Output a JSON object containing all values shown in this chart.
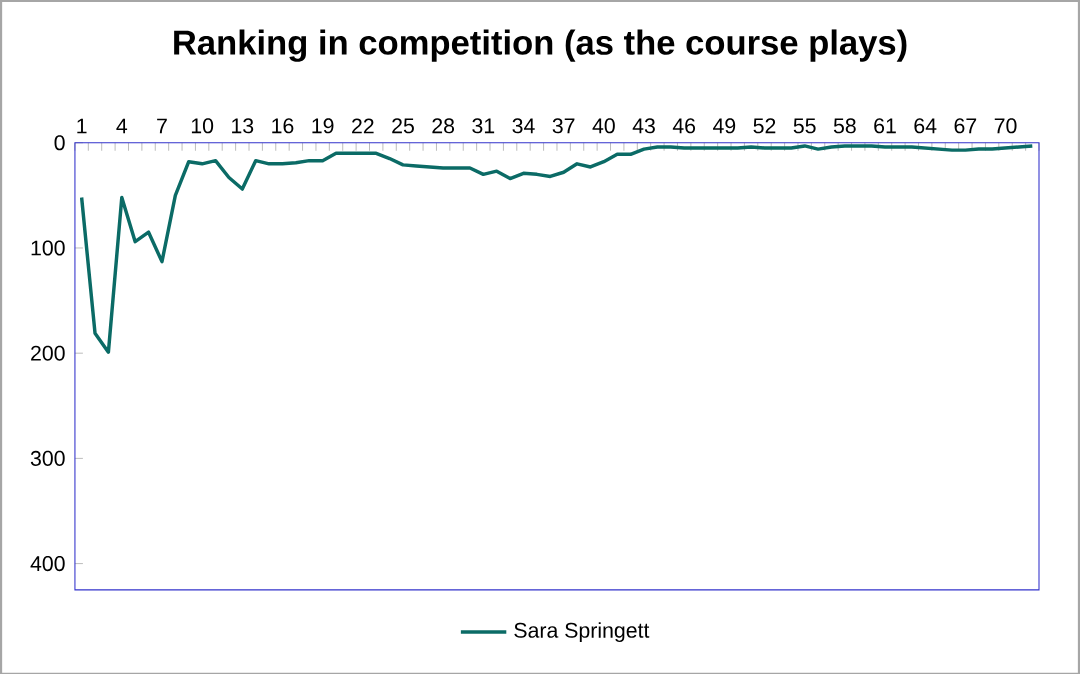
{
  "chart_data": {
    "type": "line",
    "title": "Ranking in competition (as the course plays)",
    "categories": [
      "1",
      null,
      null,
      "4",
      null,
      null,
      "7",
      null,
      null,
      "10",
      null,
      null,
      "13",
      null,
      null,
      "16",
      null,
      null,
      "19",
      null,
      null,
      "22",
      null,
      null,
      "25",
      null,
      null,
      "28",
      null,
      null,
      "31",
      null,
      null,
      "34",
      null,
      null,
      "37",
      null,
      null,
      "40",
      null,
      null,
      "43",
      null,
      null,
      "46",
      null,
      null,
      "49",
      null,
      null,
      "52",
      null,
      null,
      "55",
      null,
      null,
      "58",
      null,
      null,
      "61",
      null,
      null,
      "64",
      null,
      null,
      "67",
      null,
      null,
      "70",
      null,
      null
    ],
    "series": [
      {
        "name": "Sara Springett",
        "color": "#0b6b66",
        "values": [
          52,
          181,
          199,
          52,
          94,
          85,
          113,
          50,
          18,
          20,
          17,
          33,
          44,
          17,
          20,
          20,
          19,
          17,
          17,
          10,
          10,
          10,
          10,
          15,
          21,
          22,
          23,
          24,
          24,
          24,
          30,
          27,
          34,
          29,
          30,
          32,
          28,
          20,
          23,
          18,
          11,
          11,
          6,
          4,
          4,
          5,
          5,
          5,
          5,
          5,
          4,
          5,
          5,
          5,
          3,
          6,
          4,
          3,
          3,
          3,
          4,
          4,
          4,
          5,
          6,
          7,
          7,
          6,
          6,
          5,
          4,
          3
        ]
      }
    ],
    "ylim": [
      425,
      0
    ],
    "yticks": [
      0,
      100,
      200,
      300,
      400
    ],
    "grid": false,
    "legend": "bottom",
    "marker": "none",
    "line_style": "solid"
  }
}
